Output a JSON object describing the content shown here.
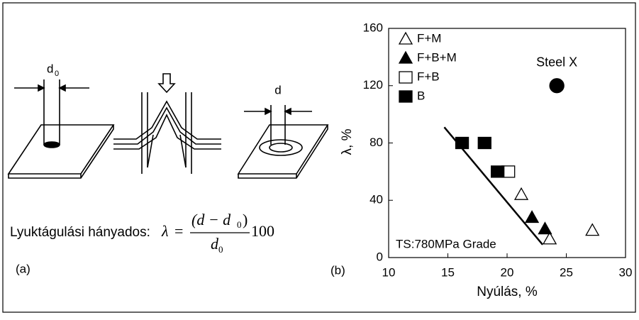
{
  "panel_a": {
    "label": "(a)",
    "d0_label": {
      "main": "d",
      "sub": "0"
    },
    "d_label": "d",
    "caption": "Lyuktágulási hányados:",
    "formula": {
      "lhs": "λ",
      "equals": "=",
      "numerator": "(d − d",
      "numerator_sub": "0",
      "numerator_end": ")",
      "denominator": "d",
      "denominator_sub": "0",
      "factor": "100"
    }
  },
  "chart_data": {
    "type": "scatter",
    "panel_label": "(b)",
    "x_label": "Nyúlás, %",
    "y_label": "λ, %",
    "xlim": [
      10,
      30
    ],
    "xticks": [
      10,
      15,
      20,
      25,
      30
    ],
    "ylim": [
      0,
      160
    ],
    "yticks": [
      0,
      40,
      80,
      120,
      160
    ],
    "annotation": "TS:780MPa Grade",
    "series": [
      {
        "name": "F+M",
        "marker": "triangle",
        "filled": false,
        "color": "#000000",
        "x": [
          21.2,
          23.6,
          27.2
        ],
        "values": [
          44,
          13,
          19
        ]
      },
      {
        "name": "F+B+M",
        "marker": "triangle",
        "filled": true,
        "color": "#000000",
        "x": [
          22.1,
          23.2
        ],
        "values": [
          28,
          20
        ]
      },
      {
        "name": "F+B",
        "marker": "square",
        "filled": false,
        "color": "#000000",
        "x": [
          20.1
        ],
        "values": [
          60
        ]
      },
      {
        "name": "B",
        "marker": "square",
        "filled": true,
        "color": "#000000",
        "x": [
          16.2,
          18.1,
          19.2
        ],
        "values": [
          80,
          80,
          60
        ]
      },
      {
        "name": "Steel X",
        "marker": "circle",
        "filled": true,
        "color": "#000000",
        "x": [
          24.2
        ],
        "values": [
          120
        ],
        "label_at_point": true
      }
    ],
    "trend_line": {
      "x": [
        14.7,
        23.0
      ],
      "values": [
        91,
        9
      ]
    }
  }
}
